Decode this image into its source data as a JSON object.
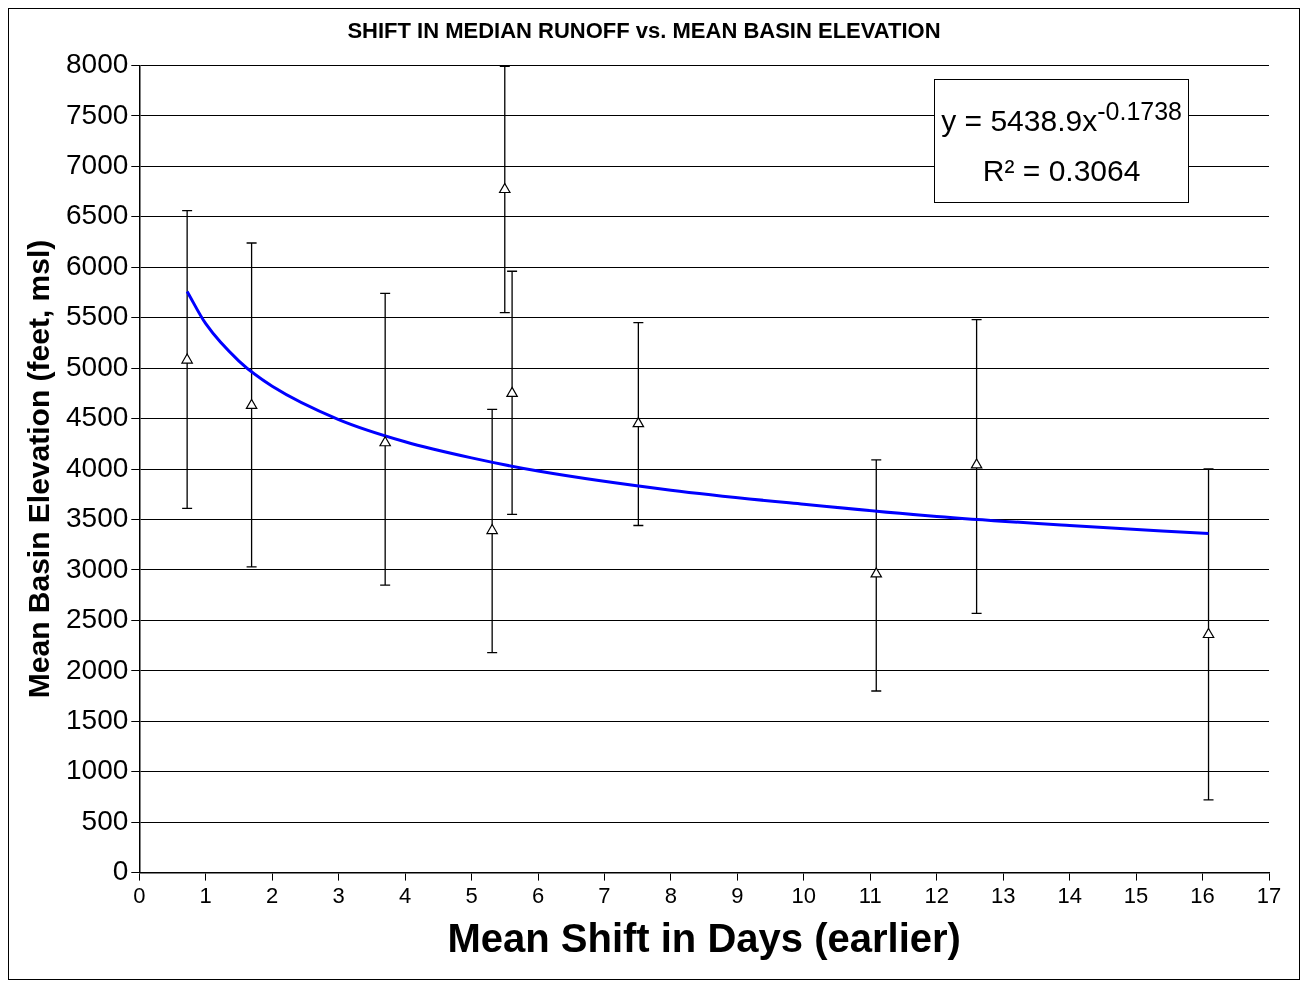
{
  "chart_data": {
    "type": "scatter",
    "title": "SHIFT IN MEDIAN RUNOFF vs. MEAN BASIN ELEVATION",
    "xlabel": "Mean Shift in Days (earlier)",
    "ylabel": "Mean Basin Elevation (feet, msl)",
    "xlim": [
      0,
      17
    ],
    "xticks": [
      0,
      1,
      2,
      3,
      4,
      5,
      6,
      7,
      8,
      9,
      10,
      11,
      12,
      13,
      14,
      15,
      16,
      17
    ],
    "ylim": [
      0,
      8000
    ],
    "yticks": [
      0,
      500,
      1000,
      1500,
      2000,
      2500,
      3000,
      3500,
      4000,
      4500,
      5000,
      5500,
      6000,
      6500,
      7000,
      7500,
      8000
    ],
    "grid": "y",
    "legend": false,
    "annotations": [
      "y = 5438.9x$^{-0.1738}$",
      "R² = 0.3064"
    ],
    "series": [
      {
        "type": "scatter",
        "color": "#000000",
        "marker": "triangle",
        "x": [
          0.72,
          1.69,
          3.7,
          5.31,
          5.5,
          5.61,
          7.51,
          11.09,
          12.6,
          16.09
        ],
        "values": [
          5080,
          4630,
          4260,
          3390,
          6770,
          4750,
          4450,
          2960,
          4040,
          2360
        ],
        "errors": [
          [
            3610,
            6560
          ],
          [
            3030,
            6240
          ],
          [
            2850,
            5740
          ],
          [
            2180,
            4590
          ],
          [
            5550,
            7990
          ],
          [
            3550,
            5960
          ],
          [
            3440,
            5450
          ],
          [
            1800,
            4090
          ],
          [
            2570,
            5480
          ],
          [
            720,
            4000
          ]
        ]
      },
      {
        "type": "line",
        "color": "#0000ff",
        "marker": "none",
        "line_style": "solid",
        "x": [
          0.72,
          1,
          1.5,
          2,
          3,
          4,
          5,
          6,
          8,
          10,
          12,
          14,
          16.09
        ],
        "values": [
          5760,
          5440,
          5070,
          4820,
          4490,
          4270,
          4110,
          3980,
          3790,
          3650,
          3530,
          3440,
          3360
        ]
      }
    ]
  }
}
